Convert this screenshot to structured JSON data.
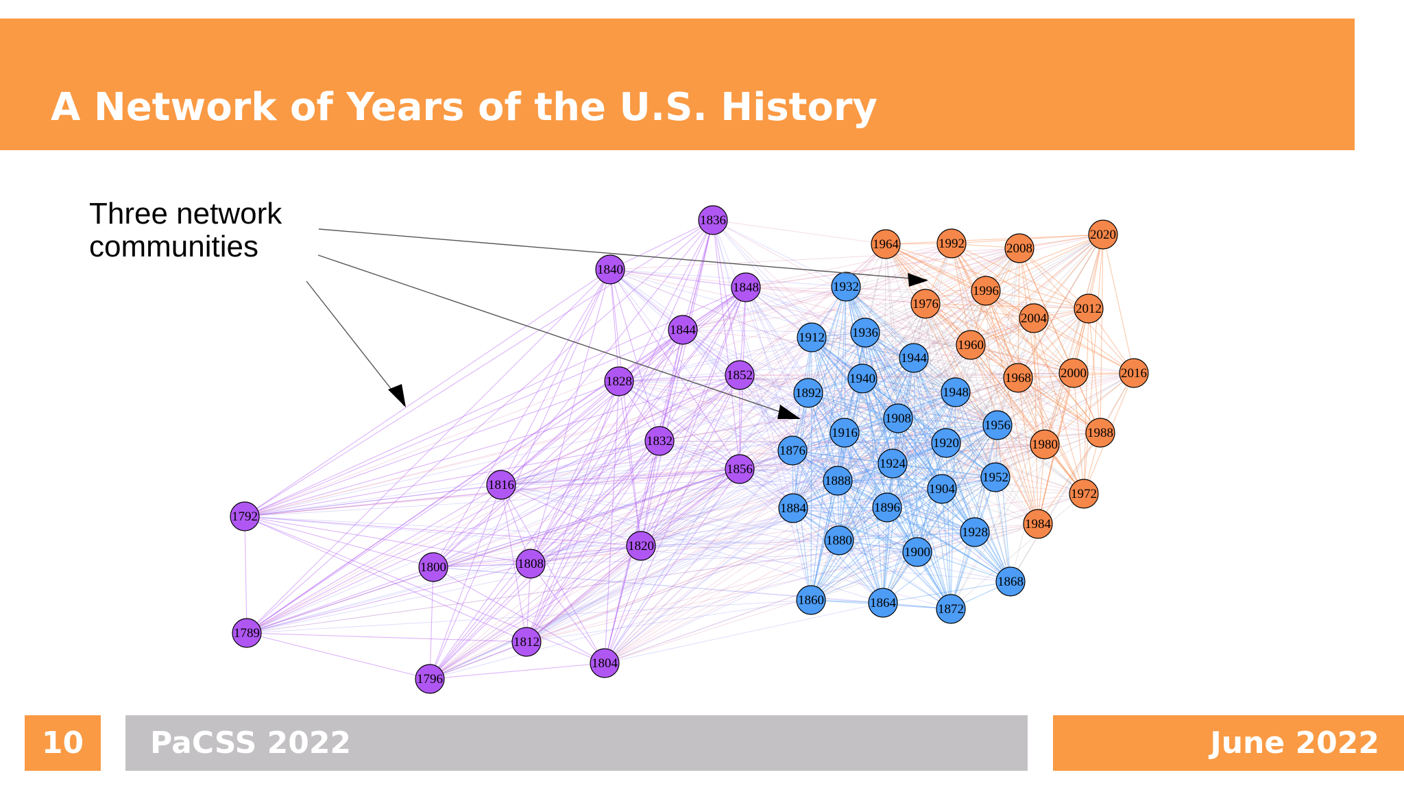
{
  "slide": {
    "title": "A Network of Years of the U.S. History",
    "annotation_line1": "Three network",
    "annotation_line2": "communities",
    "page_number": "10",
    "conference": "PaCSS 2022",
    "date": "June 2022"
  },
  "colors": {
    "accent": "#FA9A44",
    "footer_gray": "#C3C1C4",
    "purple": "#B057F3",
    "blue": "#4D9CF5",
    "orange": "#F6874A"
  },
  "network": {
    "communities": [
      "purple",
      "blue",
      "orange"
    ],
    "nodes": [
      {
        "label": "1789",
        "community": "purple"
      },
      {
        "label": "1792",
        "community": "purple"
      },
      {
        "label": "1796",
        "community": "purple"
      },
      {
        "label": "1800",
        "community": "purple"
      },
      {
        "label": "1804",
        "community": "purple"
      },
      {
        "label": "1808",
        "community": "purple"
      },
      {
        "label": "1812",
        "community": "purple"
      },
      {
        "label": "1816",
        "community": "purple"
      },
      {
        "label": "1820",
        "community": "purple"
      },
      {
        "label": "1828",
        "community": "purple"
      },
      {
        "label": "1832",
        "community": "purple"
      },
      {
        "label": "1836",
        "community": "purple"
      },
      {
        "label": "1840",
        "community": "purple"
      },
      {
        "label": "1844",
        "community": "purple"
      },
      {
        "label": "1848",
        "community": "purple"
      },
      {
        "label": "1852",
        "community": "purple"
      },
      {
        "label": "1856",
        "community": "purple"
      },
      {
        "label": "1860",
        "community": "blue"
      },
      {
        "label": "1864",
        "community": "blue"
      },
      {
        "label": "1868",
        "community": "blue"
      },
      {
        "label": "1872",
        "community": "blue"
      },
      {
        "label": "1876",
        "community": "blue"
      },
      {
        "label": "1880",
        "community": "blue"
      },
      {
        "label": "1884",
        "community": "blue"
      },
      {
        "label": "1888",
        "community": "blue"
      },
      {
        "label": "1892",
        "community": "blue"
      },
      {
        "label": "1896",
        "community": "blue"
      },
      {
        "label": "1900",
        "community": "blue"
      },
      {
        "label": "1904",
        "community": "blue"
      },
      {
        "label": "1908",
        "community": "blue"
      },
      {
        "label": "1912",
        "community": "blue"
      },
      {
        "label": "1916",
        "community": "blue"
      },
      {
        "label": "1920",
        "community": "blue"
      },
      {
        "label": "1924",
        "community": "blue"
      },
      {
        "label": "1928",
        "community": "blue"
      },
      {
        "label": "1932",
        "community": "blue"
      },
      {
        "label": "1936",
        "community": "blue"
      },
      {
        "label": "1940",
        "community": "blue"
      },
      {
        "label": "1944",
        "community": "blue"
      },
      {
        "label": "1948",
        "community": "blue"
      },
      {
        "label": "1952",
        "community": "blue"
      },
      {
        "label": "1956",
        "community": "blue"
      },
      {
        "label": "1960",
        "community": "orange"
      },
      {
        "label": "1964",
        "community": "orange"
      },
      {
        "label": "1968",
        "community": "orange"
      },
      {
        "label": "1972",
        "community": "orange"
      },
      {
        "label": "1976",
        "community": "orange"
      },
      {
        "label": "1980",
        "community": "orange"
      },
      {
        "label": "1984",
        "community": "orange"
      },
      {
        "label": "1988",
        "community": "orange"
      },
      {
        "label": "1992",
        "community": "orange"
      },
      {
        "label": "1996",
        "community": "orange"
      },
      {
        "label": "2000",
        "community": "orange"
      },
      {
        "label": "2004",
        "community": "orange"
      },
      {
        "label": "2008",
        "community": "orange"
      },
      {
        "label": "2012",
        "community": "orange"
      },
      {
        "label": "2016",
        "community": "orange"
      },
      {
        "label": "2020",
        "community": "orange"
      }
    ]
  }
}
